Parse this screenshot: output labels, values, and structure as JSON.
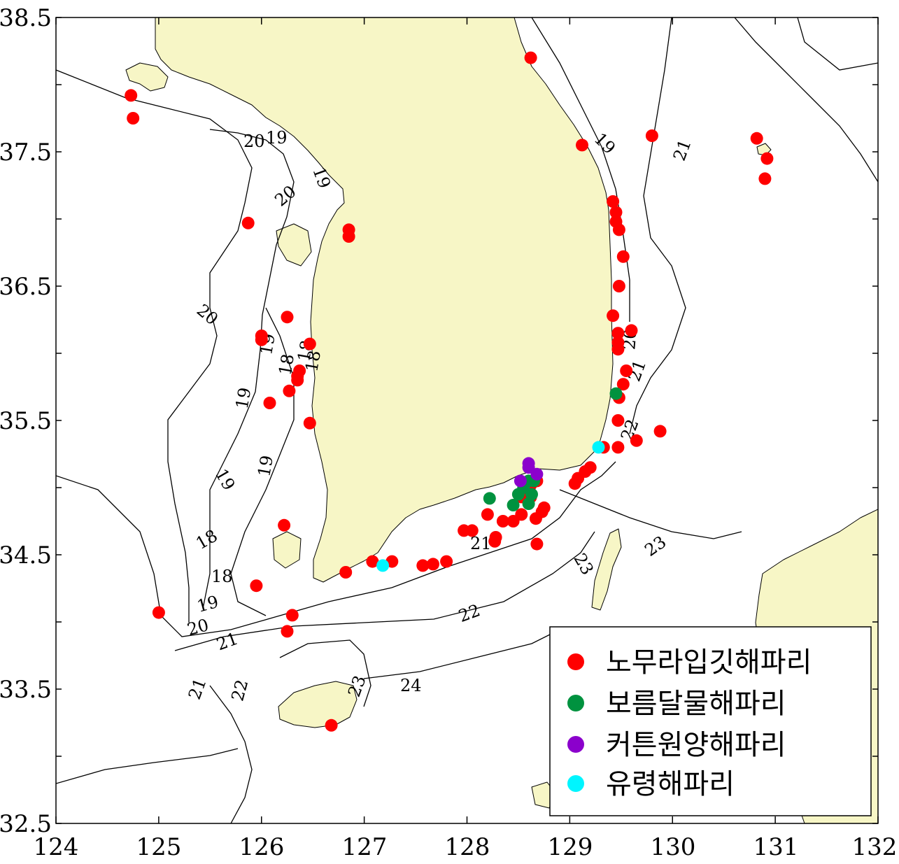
{
  "map": {
    "x_range": [
      124,
      132
    ],
    "y_range": [
      32.5,
      38.5
    ],
    "x_ticks": [
      "124",
      "125",
      "126",
      "127",
      "128",
      "129",
      "130",
      "131",
      "132"
    ],
    "y_ticks": [
      "38.5",
      "37.5",
      "36.5",
      "35.5",
      "34.5",
      "33.5",
      "32.5"
    ],
    "contour_labels": [
      "20",
      "19",
      "19",
      "20",
      "20",
      "19",
      "18",
      "18",
      "18",
      "19",
      "19",
      "19",
      "18",
      "18",
      "19",
      "20",
      "21",
      "21",
      "22",
      "21",
      "22",
      "23",
      "24",
      "23",
      "23",
      "19",
      "21",
      "20",
      "21",
      "22"
    ],
    "colors": {
      "land": "#f7f6c6",
      "nomura": "#ff0000",
      "moon": "#00923f",
      "cotton": "#8b00cc",
      "ghost": "#00f5ff"
    }
  },
  "legend": {
    "items": [
      {
        "label": "노무라입깃해파리",
        "color": "#ff0000"
      },
      {
        "label": "보름달물해파리",
        "color": "#00923f"
      },
      {
        "label": "커튼원양해파리",
        "color": "#8b00cc"
      },
      {
        "label": "유령해파리",
        "color": "#00f5ff"
      }
    ]
  },
  "sightings": {
    "nomura": [
      [
        124.73,
        37.92
      ],
      [
        124.75,
        37.75
      ],
      [
        125.87,
        36.97
      ],
      [
        126.85,
        36.92
      ],
      [
        126.85,
        36.87
      ],
      [
        128.62,
        38.2
      ],
      [
        129.12,
        37.55
      ],
      [
        129.8,
        37.62
      ],
      [
        130.82,
        37.6
      ],
      [
        130.92,
        37.45
      ],
      [
        130.9,
        37.3
      ],
      [
        129.42,
        37.13
      ],
      [
        129.45,
        37.05
      ],
      [
        129.45,
        36.98
      ],
      [
        129.48,
        36.92
      ],
      [
        129.52,
        36.72
      ],
      [
        129.48,
        36.5
      ],
      [
        129.42,
        36.28
      ],
      [
        129.47,
        36.15
      ],
      [
        129.47,
        36.08
      ],
      [
        129.47,
        36.03
      ],
      [
        129.6,
        36.17
      ],
      [
        129.55,
        35.87
      ],
      [
        129.52,
        35.77
      ],
      [
        129.48,
        35.67
      ],
      [
        129.47,
        35.5
      ],
      [
        129.65,
        35.35
      ],
      [
        129.88,
        35.42
      ],
      [
        129.47,
        35.3
      ],
      [
        129.33,
        35.3
      ],
      [
        129.2,
        35.15
      ],
      [
        129.15,
        35.12
      ],
      [
        129.08,
        35.07
      ],
      [
        129.05,
        35.03
      ],
      [
        126.25,
        36.27
      ],
      [
        126.0,
        36.13
      ],
      [
        126.0,
        36.1
      ],
      [
        126.47,
        36.07
      ],
      [
        126.37,
        35.87
      ],
      [
        126.35,
        35.83
      ],
      [
        126.35,
        35.8
      ],
      [
        126.27,
        35.72
      ],
      [
        126.08,
        35.63
      ],
      [
        126.47,
        35.48
      ],
      [
        126.22,
        34.72
      ],
      [
        125.95,
        34.27
      ],
      [
        125.0,
        34.07
      ],
      [
        126.3,
        34.05
      ],
      [
        126.25,
        33.93
      ],
      [
        126.68,
        33.23
      ],
      [
        126.82,
        34.37
      ],
      [
        127.08,
        34.45
      ],
      [
        127.27,
        34.45
      ],
      [
        127.57,
        34.42
      ],
      [
        127.67,
        34.43
      ],
      [
        127.8,
        34.45
      ],
      [
        127.97,
        34.68
      ],
      [
        128.05,
        34.68
      ],
      [
        128.2,
        34.8
      ],
      [
        128.27,
        34.6
      ],
      [
        128.28,
        34.63
      ],
      [
        128.35,
        34.75
      ],
      [
        128.45,
        34.75
      ],
      [
        128.53,
        34.8
      ],
      [
        128.53,
        34.93
      ],
      [
        128.58,
        34.92
      ],
      [
        128.62,
        34.93
      ],
      [
        128.62,
        35.02
      ],
      [
        128.67,
        34.77
      ],
      [
        128.73,
        34.82
      ],
      [
        128.75,
        34.85
      ],
      [
        128.68,
        34.58
      ],
      [
        128.68,
        35.05
      ]
    ],
    "moon": [
      [
        128.22,
        34.92
      ],
      [
        128.45,
        34.87
      ],
      [
        128.5,
        34.95
      ],
      [
        128.55,
        35.0
      ],
      [
        128.6,
        35.05
      ],
      [
        128.6,
        34.88
      ],
      [
        128.63,
        34.95
      ],
      [
        128.65,
        35.05
      ],
      [
        129.45,
        35.7
      ]
    ],
    "cotton": [
      [
        128.6,
        35.18
      ],
      [
        128.6,
        35.15
      ],
      [
        128.52,
        35.05
      ],
      [
        128.68,
        35.1
      ]
    ],
    "ghost": [
      [
        127.18,
        34.42
      ],
      [
        129.28,
        35.3
      ]
    ]
  }
}
